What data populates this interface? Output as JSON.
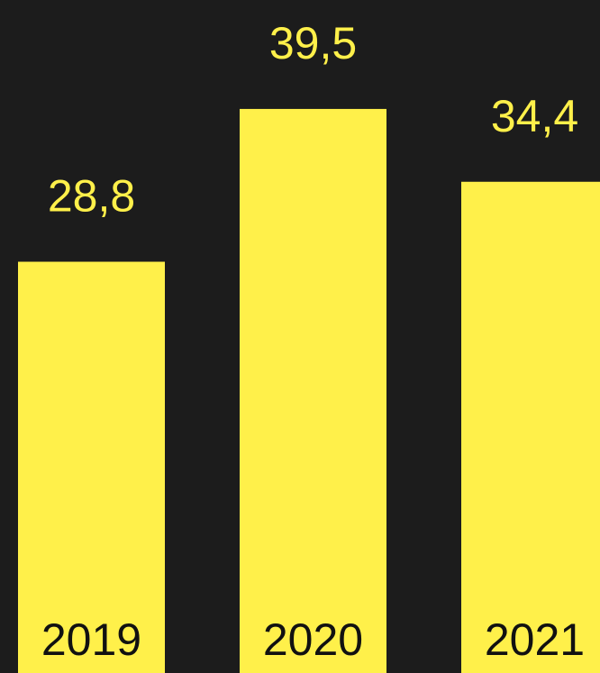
{
  "chart_data": {
    "type": "bar",
    "categories": [
      "2019",
      "2020",
      "2021"
    ],
    "values": [
      28.8,
      39.5,
      34.4
    ],
    "value_labels": [
      "28,8",
      "39,5",
      "34,4"
    ],
    "grid": false,
    "legend": "none"
  },
  "colors": {
    "background": "#1c1c1c",
    "bar": "#fff04a",
    "value_label": "#fff04a",
    "category_label": "#111111"
  }
}
